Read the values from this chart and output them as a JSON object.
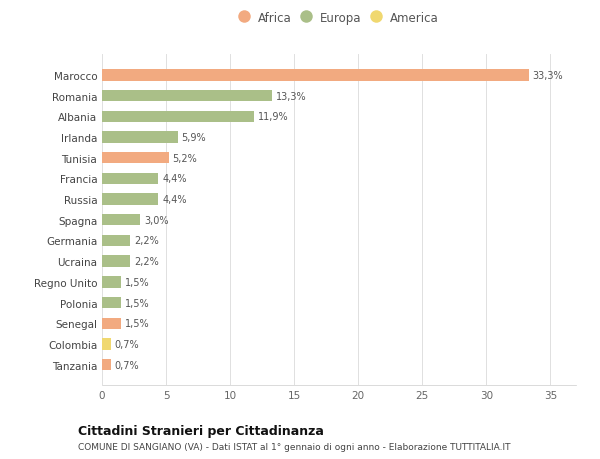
{
  "countries": [
    "Marocco",
    "Romania",
    "Albania",
    "Irlanda",
    "Tunisia",
    "Francia",
    "Russia",
    "Spagna",
    "Germania",
    "Ucraina",
    "Regno Unito",
    "Polonia",
    "Senegal",
    "Colombia",
    "Tanzania"
  ],
  "values": [
    33.3,
    13.3,
    11.9,
    5.9,
    5.2,
    4.4,
    4.4,
    3.0,
    2.2,
    2.2,
    1.5,
    1.5,
    1.5,
    0.7,
    0.7
  ],
  "labels": [
    "33,3%",
    "13,3%",
    "11,9%",
    "5,9%",
    "5,2%",
    "4,4%",
    "4,4%",
    "3,0%",
    "2,2%",
    "2,2%",
    "1,5%",
    "1,5%",
    "1,5%",
    "0,7%",
    "0,7%"
  ],
  "continents": [
    "Africa",
    "Europa",
    "Europa",
    "Europa",
    "Africa",
    "Europa",
    "Europa",
    "Europa",
    "Europa",
    "Europa",
    "Europa",
    "Europa",
    "Africa",
    "America",
    "Africa"
  ],
  "colors": {
    "Africa": "#F2AA80",
    "Europa": "#AABF88",
    "America": "#F0D870"
  },
  "legend": [
    "Africa",
    "Europa",
    "America"
  ],
  "legend_colors": [
    "#F2AA80",
    "#AABF88",
    "#F0D870"
  ],
  "xlim": [
    0,
    37
  ],
  "xticks": [
    0,
    5,
    10,
    15,
    20,
    25,
    30,
    35
  ],
  "title": "Cittadini Stranieri per Cittadinanza",
  "subtitle": "COMUNE DI SANGIANO (VA) - Dati ISTAT al 1° gennaio di ogni anno - Elaborazione TUTTITALIA.IT",
  "bg_color": "#ffffff",
  "grid_color": "#e0e0e0"
}
